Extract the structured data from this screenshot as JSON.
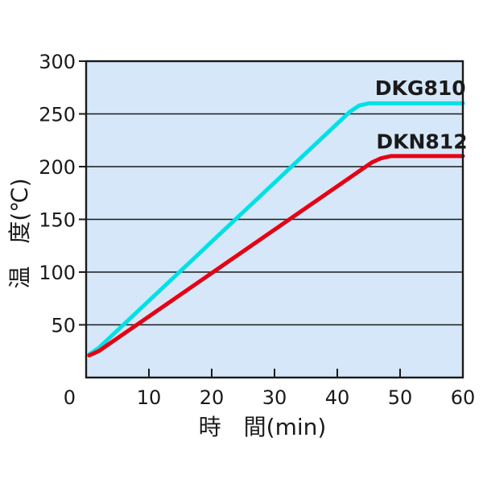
{
  "page": {
    "background": "#ffffff"
  },
  "chart_data": {
    "type": "line",
    "title": "",
    "xlabel": "時　間(min)",
    "ylabel": "温　度(℃)",
    "xlim": [
      0,
      60
    ],
    "ylim": [
      0,
      300
    ],
    "x_ticks": [
      0,
      10,
      20,
      30,
      40,
      50,
      60
    ],
    "y_ticks": [
      0,
      50,
      100,
      150,
      200,
      250,
      300
    ],
    "grid": "horizontal-only",
    "legend_position": "inline-labels-above-lines",
    "plot_bg": "#d5e7f8",
    "axis_color": "#1a1a1a",
    "series": [
      {
        "name": "DKG810",
        "color": "#00e0e6",
        "label_at": [
          46,
          268
        ],
        "points": [
          [
            0.5,
            22
          ],
          [
            2,
            28
          ],
          [
            42,
            252
          ],
          [
            43.5,
            258
          ],
          [
            45,
            260
          ],
          [
            60,
            260
          ]
        ]
      },
      {
        "name": "DKN812",
        "color": "#e60014",
        "label_at": [
          46.2,
          217
        ],
        "points": [
          [
            0.5,
            21
          ],
          [
            2,
            25
          ],
          [
            45.5,
            204
          ],
          [
            47,
            208
          ],
          [
            48.5,
            210
          ],
          [
            60,
            210
          ]
        ]
      }
    ]
  }
}
